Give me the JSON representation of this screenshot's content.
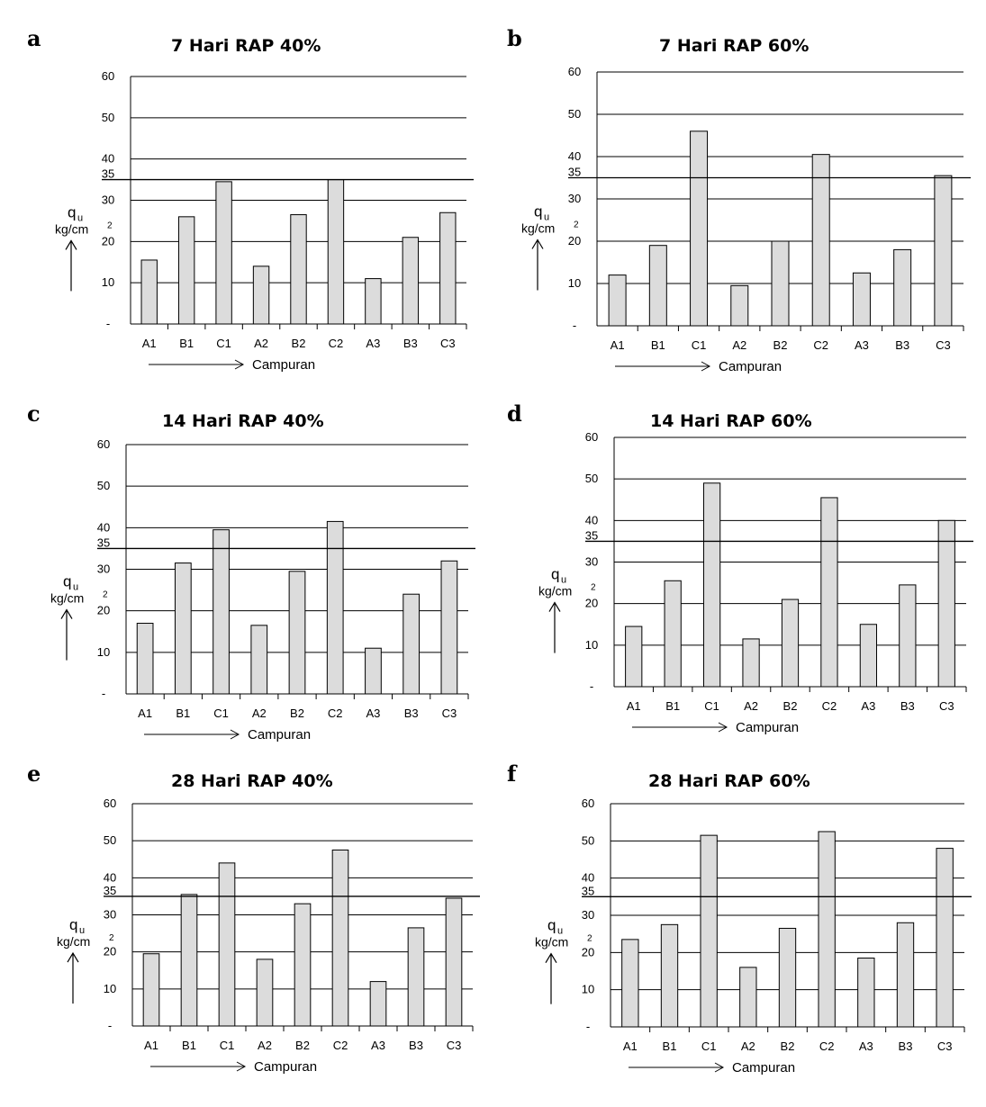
{
  "y_axis_label_q": "q",
  "y_axis_label_q_sub": "u",
  "y_axis_label_unit": "kg/cm",
  "y_axis_label_unit_sup": "2",
  "x_axis_label": "Campuran",
  "reference_label": "35",
  "bar_color": "#dcdcdc",
  "chart_data": [
    {
      "panel": "a",
      "type": "bar",
      "title": "7 Hari RAP 40%",
      "categories": [
        "A1",
        "B1",
        "C1",
        "A2",
        "B2",
        "C2",
        "A3",
        "B3",
        "C3"
      ],
      "values": [
        15.5,
        26,
        34.5,
        14,
        26.5,
        35,
        11,
        21,
        27
      ],
      "ylim": [
        0,
        60
      ],
      "yticks": [
        "-",
        "10",
        "20",
        "30",
        "40",
        "50",
        "60"
      ],
      "reference_line": 35,
      "grid": true
    },
    {
      "panel": "b",
      "type": "bar",
      "title": "7 Hari RAP 60%",
      "categories": [
        "A1",
        "B1",
        "C1",
        "A2",
        "B2",
        "C2",
        "A3",
        "B3",
        "C3"
      ],
      "values": [
        12,
        19,
        46,
        9.5,
        20,
        40.5,
        12.5,
        18,
        35.5
      ],
      "ylim": [
        0,
        60
      ],
      "yticks": [
        "-",
        "10",
        "20",
        "30",
        "40",
        "50",
        "60"
      ],
      "reference_line": 35,
      "grid": true
    },
    {
      "panel": "c",
      "type": "bar",
      "title": "14 Hari RAP 40%",
      "categories": [
        "A1",
        "B1",
        "C1",
        "A2",
        "B2",
        "C2",
        "A3",
        "B3",
        "C3"
      ],
      "values": [
        17,
        31.5,
        39.5,
        16.5,
        29.5,
        41.5,
        11,
        24,
        32
      ],
      "ylim": [
        0,
        60
      ],
      "yticks": [
        "-",
        "10",
        "20",
        "30",
        "40",
        "50",
        "60"
      ],
      "reference_line": 35,
      "grid": true
    },
    {
      "panel": "d",
      "type": "bar",
      "title": "14 Hari RAP 60%",
      "categories": [
        "A1",
        "B1",
        "C1",
        "A2",
        "B2",
        "C2",
        "A3",
        "B3",
        "C3"
      ],
      "values": [
        14.5,
        25.5,
        49,
        11.5,
        21,
        45.5,
        15,
        24.5,
        40
      ],
      "ylim": [
        0,
        60
      ],
      "yticks": [
        "-",
        "10",
        "20",
        "30",
        "40",
        "50",
        "60"
      ],
      "reference_line": 35,
      "grid": true
    },
    {
      "panel": "e",
      "type": "bar",
      "title": "28 Hari RAP 40%",
      "categories": [
        "A1",
        "B1",
        "C1",
        "A2",
        "B2",
        "C2",
        "A3",
        "B3",
        "C3"
      ],
      "values": [
        19.5,
        35.5,
        44,
        18,
        33,
        47.5,
        12,
        26.5,
        34.5
      ],
      "ylim": [
        0,
        60
      ],
      "yticks": [
        "-",
        "10",
        "20",
        "30",
        "40",
        "50",
        "60"
      ],
      "reference_line": 35,
      "grid": true
    },
    {
      "panel": "f",
      "type": "bar",
      "title": "28 Hari RAP 60%",
      "categories": [
        "A1",
        "B1",
        "C1",
        "A2",
        "B2",
        "C2",
        "A3",
        "B3",
        "C3"
      ],
      "values": [
        23.5,
        27.5,
        51.5,
        16,
        26.5,
        52.5,
        18.5,
        28,
        48
      ],
      "ylim": [
        0,
        60
      ],
      "yticks": [
        "-",
        "10",
        "20",
        "30",
        "40",
        "50",
        "60"
      ],
      "reference_line": 35,
      "grid": true
    }
  ]
}
